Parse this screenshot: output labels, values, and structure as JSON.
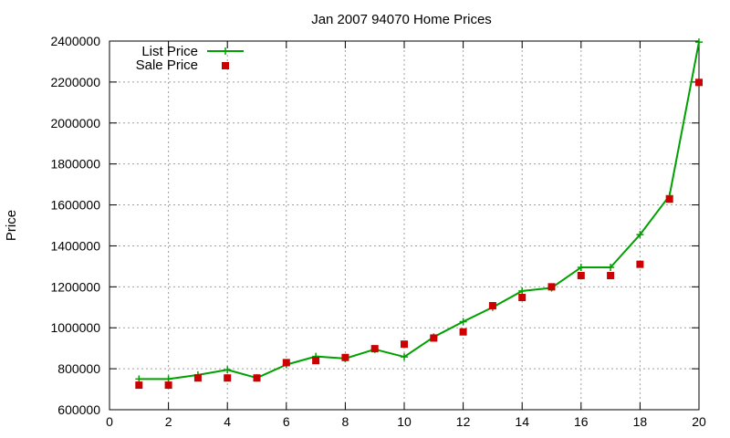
{
  "chart_data": {
    "type": "line",
    "title": "Jan 2007 94070 Home Prices",
    "xlabel": "",
    "ylabel": "Price",
    "xlim": [
      0,
      20
    ],
    "ylim": [
      600000,
      2400000
    ],
    "x_ticks": [
      0,
      2,
      4,
      6,
      8,
      10,
      12,
      14,
      16,
      18,
      20
    ],
    "y_ticks": [
      600000,
      800000,
      1000000,
      1200000,
      1400000,
      1600000,
      1800000,
      2000000,
      2200000,
      2400000
    ],
    "grid": true,
    "legend_position": "top-left",
    "x": [
      1,
      2,
      3,
      4,
      5,
      6,
      7,
      8,
      9,
      10,
      11,
      12,
      13,
      14,
      15,
      16,
      17,
      18,
      19,
      20
    ],
    "series": [
      {
        "name": "List Price",
        "style": "line-points",
        "color": "#00a000",
        "values": [
          750000,
          750000,
          770000,
          795000,
          755000,
          820000,
          860000,
          850000,
          895000,
          858000,
          955000,
          1030000,
          1100000,
          1180000,
          1195000,
          1295000,
          1295000,
          1455000,
          1645000,
          2395000
        ]
      },
      {
        "name": "Sale Price",
        "style": "points",
        "color": "#cc0000",
        "values": [
          720000,
          720000,
          755000,
          755000,
          755000,
          830000,
          840000,
          855000,
          898000,
          920000,
          950000,
          980000,
          1108000,
          1148000,
          1200000,
          1255000,
          1255000,
          1310000,
          1628000,
          2198000
        ]
      }
    ]
  }
}
